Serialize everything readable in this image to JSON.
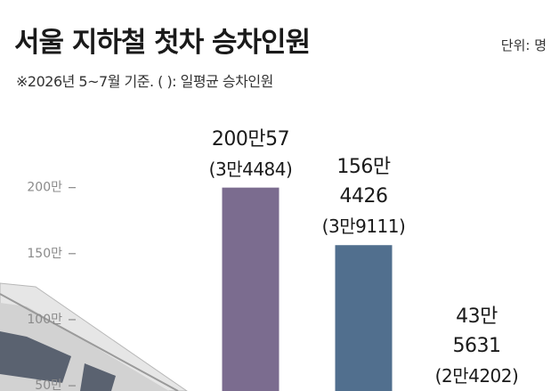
{
  "chart_data": {
    "type": "bar",
    "title": "서울 지하철 첫차 승차인원",
    "unit": "단위: 명",
    "subtitle": "※2026년 5~7월 기준. ( ): 일평균 승차인원",
    "categories": [
      null,
      null,
      null
    ],
    "values": [
      2000057,
      1564426,
      435631
    ],
    "value_labels": [
      "200만57",
      "156만\n4426",
      "43만\n5631"
    ],
    "daily_labels": [
      "(3만4484)",
      "(3만9111)",
      "(2만4202)"
    ],
    "colors": [
      "#7b6c8f",
      "#516f8e",
      "#5f8b8b"
    ],
    "ylim": [
      460000,
      2500000
    ],
    "yticks": [
      {
        "value": 500000,
        "label": "50만"
      },
      {
        "value": 1000000,
        "label": "100만"
      },
      {
        "value": 1500000,
        "label": "150만"
      },
      {
        "value": 2000000,
        "label": "200만"
      }
    ]
  }
}
